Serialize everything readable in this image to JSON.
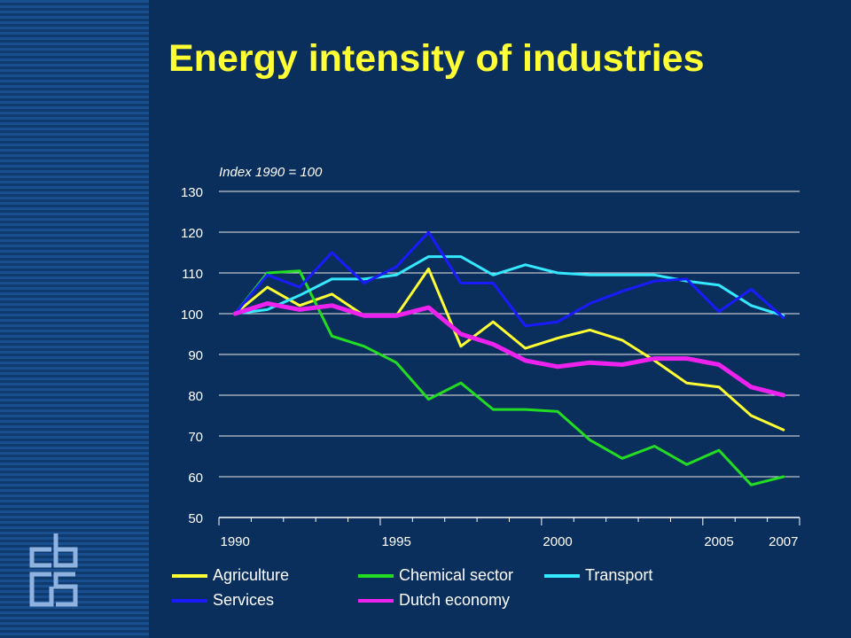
{
  "title": "Energy intensity of industries",
  "chart_data": {
    "type": "line",
    "title": "Energy intensity of industries",
    "subtitle": "Index 1990 = 100",
    "xlabel": "",
    "ylabel": "",
    "x": [
      1990,
      1991,
      1992,
      1993,
      1994,
      1995,
      1996,
      1997,
      1998,
      1999,
      2000,
      2001,
      2002,
      2003,
      2004,
      2005,
      2006,
      2007
    ],
    "x_tick_labels": [
      "1990",
      "1995",
      "2000",
      "2005",
      "2007"
    ],
    "xlim": [
      1989.5,
      2007.5
    ],
    "ylim": [
      50,
      130
    ],
    "y_ticks": [
      50,
      60,
      70,
      80,
      90,
      100,
      110,
      120,
      130
    ],
    "grid": true,
    "legend_position": "bottom",
    "series": [
      {
        "name": "Agriculture",
        "color": "#ffff33",
        "width": 3,
        "values": [
          100,
          106.5,
          102,
          104.8,
          99.5,
          99.5,
          111,
          92,
          98,
          91.5,
          94,
          96,
          93.5,
          88.5,
          83,
          82,
          75,
          71.5
        ]
      },
      {
        "name": "Chemical sector",
        "color": "#22dd22",
        "width": 3,
        "values": [
          100,
          110,
          110.5,
          94.5,
          92,
          88,
          79,
          83,
          76.5,
          76.5,
          76,
          69,
          64.5,
          67.5,
          63,
          66.5,
          58,
          60
        ]
      },
      {
        "name": "Transport",
        "color": "#33e8ff",
        "width": 3,
        "values": [
          100,
          101,
          104.5,
          108.5,
          108.5,
          109.5,
          114,
          114,
          109.5,
          112,
          110,
          109.5,
          109.5,
          109.5,
          108,
          107,
          102,
          99.5
        ]
      },
      {
        "name": "Services",
        "color": "#1a1aff",
        "width": 3,
        "values": [
          100,
          109.5,
          106.5,
          115,
          107.5,
          111.5,
          120,
          107.5,
          107.5,
          97,
          98,
          102.5,
          105.5,
          108,
          108.5,
          100.5,
          106,
          99
        ]
      },
      {
        "name": "Dutch economy",
        "color": "#ee22ee",
        "width": 5,
        "values": [
          100,
          102.5,
          101,
          102,
          99.5,
          99.5,
          101.5,
          95,
          92.5,
          88.5,
          87,
          88,
          87.5,
          89,
          89,
          87.5,
          82,
          80
        ]
      }
    ]
  }
}
